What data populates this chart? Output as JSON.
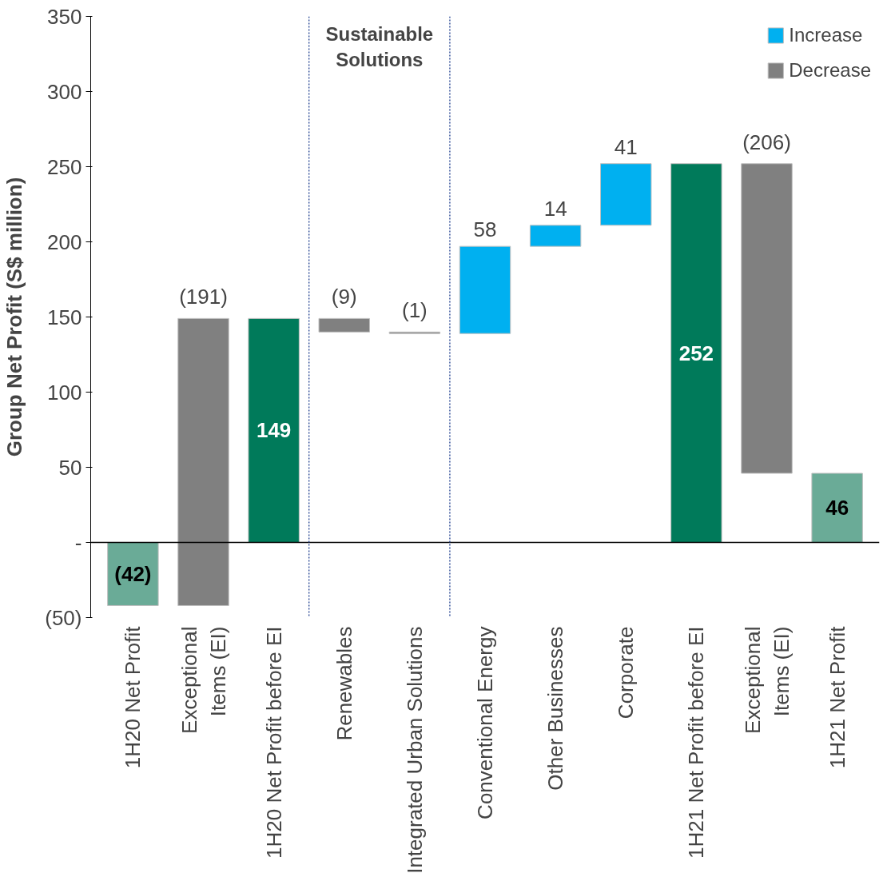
{
  "chart_data": {
    "type": "bar",
    "ylabel": "Group Net Profit (S$ million)",
    "categories": [
      "1H20 Net Profit",
      "Exceptional\nItems (EI)",
      "1H20 Net Profit before EI",
      "Renewables",
      "Integrated Urban Solutions",
      "Conventional Energy",
      "Other Businesses",
      "Corporate",
      "1H21 Net Profit before EI",
      "Exceptional\nItems (EI)",
      "1H21 Net Profit"
    ],
    "series": [
      {
        "name": "Increase",
        "color": "#00b0f0",
        "values": [
          null,
          null,
          null,
          null,
          null,
          58,
          14,
          41,
          null,
          null,
          null
        ],
        "base": [
          null,
          null,
          null,
          null,
          null,
          139,
          197,
          211,
          null,
          null,
          null
        ]
      },
      {
        "name": "Decrease",
        "color": "#808080",
        "values": [
          null,
          191,
          null,
          -9,
          -1,
          null,
          null,
          null,
          null,
          -206,
          null
        ],
        "base": [
          null,
          -42,
          null,
          149,
          140,
          null,
          null,
          null,
          null,
          252,
          null
        ]
      },
      {
        "color": "#007a5a",
        "values": [
          null,
          null,
          149,
          null,
          null,
          null,
          null,
          null,
          252,
          null,
          null
        ],
        "base": [
          null,
          null,
          0,
          null,
          null,
          null,
          null,
          null,
          0,
          null,
          null
        ]
      },
      {
        "color": "#6aab97",
        "values": [
          -42,
          null,
          null,
          null,
          null,
          null,
          null,
          null,
          null,
          null,
          46
        ],
        "base": [
          0,
          null,
          null,
          null,
          null,
          null,
          null,
          null,
          null,
          null,
          0
        ]
      }
    ],
    "value_labels": [
      "(42)",
      "(191)",
      "149",
      "(9)",
      "(1)",
      "58",
      "14",
      "41",
      "252",
      "(206)",
      "46"
    ],
    "ylim": [
      -50,
      350
    ],
    "yticks": [
      {
        "value": -50,
        "label": "(50)"
      },
      {
        "value": 0,
        "label": "-"
      },
      50,
      100,
      150,
      200,
      250,
      300,
      350
    ],
    "ref_lines": [
      {
        "axis": "y",
        "value": 0,
        "color": "#000000"
      }
    ],
    "annotations": [
      "Sustainable Solutions"
    ],
    "grid": false,
    "legend": "top right"
  }
}
